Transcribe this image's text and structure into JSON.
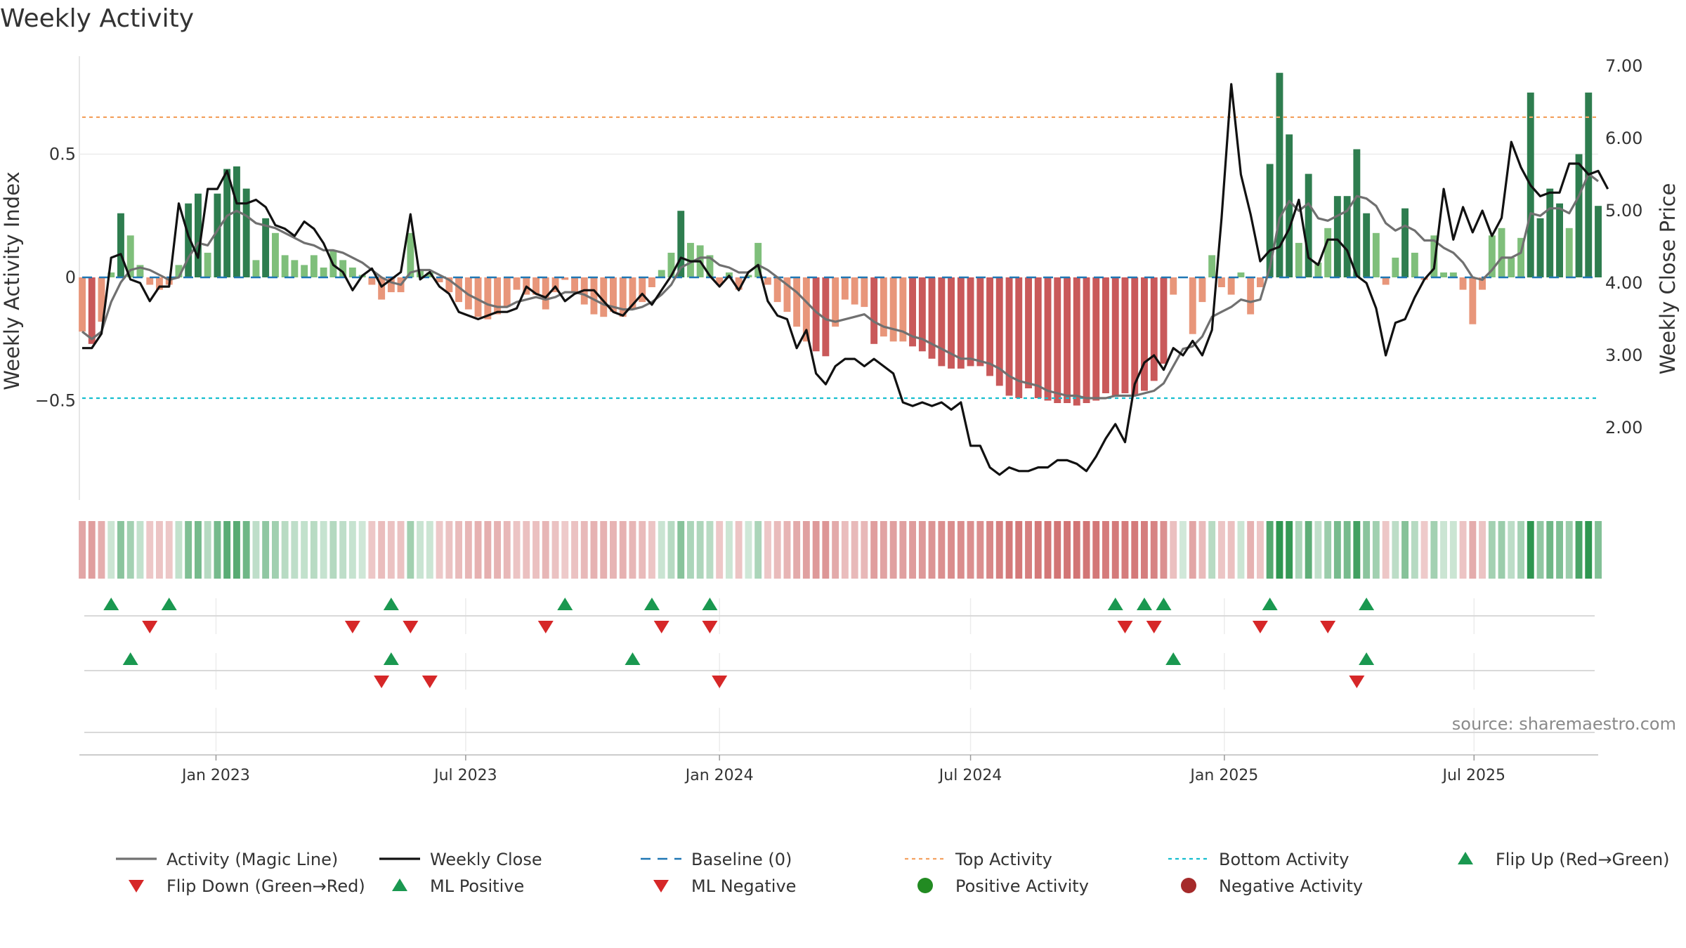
{
  "title": "Weekly Activity",
  "source": "source: sharemaestro.com",
  "colors": {
    "pos_dark": "#2e7d4f",
    "pos_light": "#7fbf7b",
    "neg_dark": "#c9595a",
    "neg_light": "#e8967a",
    "magic": "#707070",
    "close": "#111111",
    "baseline": "#1f77b4",
    "top": "#f4a261",
    "bottom": "#17becf",
    "flip_up": "#1a9850",
    "flip_down": "#d62728",
    "positive_activity": "#228b22",
    "negative_activity": "#a52a2a"
  },
  "chart_data": {
    "type": "bar",
    "title": "Weekly Activity",
    "ylabel_left": "Weekly Activity Index",
    "ylabel_right": "Weekly Close Price",
    "ylim_left": [
      -0.9,
      0.9
    ],
    "ylim_right": [
      1.0,
      7.0
    ],
    "yticks_left": [
      {
        "value": 0.5,
        "label": "0.5"
      },
      {
        "value": 0,
        "label": "0"
      },
      {
        "value": -0.5,
        "label": "−0.5"
      }
    ],
    "yticks_right": [
      {
        "value": 7.0,
        "label": "7.00"
      },
      {
        "value": 6.0,
        "label": "6.00"
      },
      {
        "value": 5.0,
        "label": "5.00"
      },
      {
        "value": 4.0,
        "label": "4.00"
      },
      {
        "value": 3.0,
        "label": "3.00"
      },
      {
        "value": 2.0,
        "label": "2.00"
      }
    ],
    "x_start": "2022-09-26",
    "weeks": 158,
    "xticks": [
      {
        "date": "2023-01-01",
        "label": "Jan 2023"
      },
      {
        "date": "2023-07-01",
        "label": "Jul 2023"
      },
      {
        "date": "2024-01-01",
        "label": "Jan 2024"
      },
      {
        "date": "2024-07-01",
        "label": "Jul 2024"
      },
      {
        "date": "2025-01-01",
        "label": "Jan 2025"
      },
      {
        "date": "2025-07-01",
        "label": "Jul 2025"
      }
    ],
    "activity": [
      -0.22,
      -0.27,
      -0.18,
      0.02,
      0.26,
      0.17,
      0.05,
      -0.03,
      -0.05,
      -0.03,
      0.05,
      0.3,
      0.34,
      0.1,
      0.34,
      0.44,
      0.45,
      0.36,
      0.07,
      0.24,
      0.18,
      0.09,
      0.07,
      0.05,
      0.09,
      0.04,
      0.11,
      0.07,
      0.04,
      0.01,
      -0.03,
      -0.09,
      -0.06,
      -0.06,
      0.18,
      0.03,
      0.02,
      -0.02,
      -0.06,
      -0.1,
      -0.13,
      -0.16,
      -0.17,
      -0.15,
      -0.12,
      -0.05,
      -0.07,
      -0.07,
      -0.13,
      -0.06,
      -0.01,
      -0.06,
      -0.11,
      -0.15,
      -0.16,
      -0.14,
      -0.16,
      -0.13,
      -0.1,
      -0.04,
      0.03,
      0.1,
      0.27,
      0.14,
      0.13,
      0.09,
      -0.03,
      0.02,
      -0.05,
      0.01,
      0.14,
      -0.03,
      -0.1,
      -0.14,
      -0.2,
      -0.26,
      -0.3,
      -0.32,
      -0.2,
      -0.09,
      -0.11,
      -0.12,
      -0.27,
      -0.24,
      -0.26,
      -0.26,
      -0.28,
      -0.3,
      -0.33,
      -0.36,
      -0.37,
      -0.37,
      -0.36,
      -0.36,
      -0.4,
      -0.44,
      -0.48,
      -0.49,
      -0.45,
      -0.49,
      -0.5,
      -0.51,
      -0.51,
      -0.52,
      -0.51,
      -0.5,
      -0.47,
      -0.48,
      -0.47,
      -0.48,
      -0.46,
      -0.42,
      -0.35,
      -0.07,
      0.0,
      -0.23,
      -0.1,
      0.09,
      -0.04,
      -0.07,
      0.02,
      -0.15,
      -0.04,
      0.46,
      0.83,
      0.58,
      0.14,
      0.42,
      0.06,
      0.2,
      0.33,
      0.33,
      0.52,
      0.26,
      0.18,
      -0.03,
      0.08,
      0.28,
      0.1,
      -0.01,
      0.17,
      0.02,
      0.02,
      -0.05,
      -0.19,
      -0.05,
      0.17,
      0.2,
      0.08,
      0.16,
      0.75,
      0.24,
      0.36,
      0.3,
      0.2,
      0.5,
      0.75,
      0.29
    ],
    "magic_line": [
      -0.22,
      -0.25,
      -0.22,
      -0.1,
      -0.02,
      0.03,
      0.04,
      0.03,
      0.01,
      -0.01,
      -0.0,
      0.08,
      0.14,
      0.13,
      0.19,
      0.25,
      0.27,
      0.25,
      0.22,
      0.21,
      0.2,
      0.18,
      0.16,
      0.14,
      0.13,
      0.11,
      0.11,
      0.1,
      0.08,
      0.06,
      0.03,
      -0.0,
      -0.02,
      -0.03,
      0.02,
      0.03,
      0.03,
      0.01,
      -0.01,
      -0.04,
      -0.07,
      -0.09,
      -0.11,
      -0.12,
      -0.12,
      -0.1,
      -0.09,
      -0.08,
      -0.09,
      -0.08,
      -0.06,
      -0.06,
      -0.07,
      -0.09,
      -0.11,
      -0.12,
      -0.13,
      -0.13,
      -0.12,
      -0.1,
      -0.07,
      -0.03,
      0.04,
      0.06,
      0.08,
      0.08,
      0.05,
      0.04,
      0.02,
      0.02,
      0.05,
      0.03,
      0.0,
      -0.03,
      -0.06,
      -0.1,
      -0.14,
      -0.17,
      -0.18,
      -0.17,
      -0.16,
      -0.15,
      -0.18,
      -0.2,
      -0.21,
      -0.22,
      -0.24,
      -0.25,
      -0.27,
      -0.29,
      -0.31,
      -0.33,
      -0.33,
      -0.34,
      -0.35,
      -0.37,
      -0.4,
      -0.42,
      -0.43,
      -0.44,
      -0.46,
      -0.47,
      -0.48,
      -0.48,
      -0.49,
      -0.49,
      -0.49,
      -0.48,
      -0.48,
      -0.48,
      -0.47,
      -0.46,
      -0.43,
      -0.36,
      -0.29,
      -0.28,
      -0.24,
      -0.16,
      -0.14,
      -0.12,
      -0.09,
      -0.1,
      -0.09,
      0.04,
      0.24,
      0.31,
      0.27,
      0.3,
      0.24,
      0.23,
      0.25,
      0.27,
      0.33,
      0.32,
      0.29,
      0.22,
      0.19,
      0.21,
      0.19,
      0.15,
      0.15,
      0.12,
      0.1,
      0.06,
      -0.0,
      -0.01,
      0.03,
      0.08,
      0.08,
      0.1,
      0.26,
      0.25,
      0.28,
      0.28,
      0.26,
      0.33,
      0.42,
      0.39
    ],
    "weekly_close": [
      3.1,
      3.1,
      3.3,
      4.35,
      4.4,
      4.05,
      4.0,
      3.75,
      3.95,
      3.95,
      5.1,
      4.65,
      4.35,
      5.3,
      5.3,
      5.55,
      5.1,
      5.1,
      5.15,
      5.05,
      4.8,
      4.75,
      4.65,
      4.85,
      4.75,
      4.55,
      4.25,
      4.15,
      3.9,
      4.1,
      4.2,
      3.95,
      4.05,
      4.15,
      4.95,
      4.05,
      4.15,
      3.95,
      3.85,
      3.6,
      3.55,
      3.5,
      3.55,
      3.6,
      3.6,
      3.65,
      3.95,
      3.85,
      3.8,
      3.95,
      3.75,
      3.85,
      3.9,
      3.9,
      3.75,
      3.6,
      3.55,
      3.7,
      3.85,
      3.7,
      3.9,
      4.1,
      4.35,
      4.3,
      4.3,
      4.1,
      3.95,
      4.1,
      3.9,
      4.15,
      4.25,
      3.75,
      3.55,
      3.5,
      3.1,
      3.35,
      2.75,
      2.6,
      2.85,
      2.95,
      2.95,
      2.85,
      2.95,
      2.85,
      2.75,
      2.35,
      2.3,
      2.35,
      2.3,
      2.35,
      2.25,
      2.35,
      1.75,
      1.75,
      1.45,
      1.35,
      1.45,
      1.4,
      1.4,
      1.45,
      1.45,
      1.55,
      1.55,
      1.5,
      1.4,
      1.6,
      1.85,
      2.05,
      1.8,
      2.6,
      2.9,
      3.0,
      2.8,
      3.1,
      3.0,
      3.2,
      3.0,
      3.35,
      4.9,
      6.75,
      5.5,
      4.95,
      4.3,
      4.45,
      4.5,
      4.75,
      5.15,
      4.35,
      4.25,
      4.6,
      4.6,
      4.45,
      4.1,
      4.0,
      3.65,
      3.0,
      3.45,
      3.5,
      3.8,
      4.05,
      4.2,
      5.3,
      4.6,
      5.05,
      4.7,
      5.0,
      4.65,
      4.9,
      5.95,
      5.6,
      5.35,
      5.2,
      5.25,
      5.25,
      5.65,
      5.65,
      5.5,
      5.55,
      5.3
    ],
    "baseline": 0,
    "top_activity": 0.65,
    "bottom_activity": -0.49,
    "flip_up_weeks": [
      3,
      9,
      32,
      50,
      59,
      65,
      107,
      110,
      112,
      123,
      133
    ],
    "flip_down_weeks": [
      7,
      28,
      34,
      48,
      60,
      65,
      108,
      111,
      122,
      129
    ],
    "ml_positive_weeks": [
      5,
      32,
      57,
      113,
      133
    ],
    "ml_negative_weeks": [
      31,
      36,
      66,
      132
    ],
    "series": [
      {
        "name": "Activity (Magic Line)"
      },
      {
        "name": "Weekly Close"
      },
      {
        "name": "Baseline (0)"
      },
      {
        "name": "Top Activity"
      },
      {
        "name": "Bottom Activity"
      },
      {
        "name": "Flip Up (Red→Green)"
      },
      {
        "name": "Flip Down (Green→Red)"
      },
      {
        "name": "ML Positive"
      },
      {
        "name": "ML Negative"
      },
      {
        "name": "Positive Activity"
      },
      {
        "name": "Negative Activity"
      }
    ]
  },
  "legend": {
    "position": "bottom",
    "items": [
      {
        "label": "Activity (Magic Line)",
        "kind": "solid-line",
        "color": "#707070"
      },
      {
        "label": "Weekly Close",
        "kind": "solid-line",
        "color": "#111111"
      },
      {
        "label": "Baseline (0)",
        "kind": "dash-line",
        "color": "#1f77b4"
      },
      {
        "label": "Top Activity",
        "kind": "dot-line",
        "color": "#f4a261"
      },
      {
        "label": "Bottom Activity",
        "kind": "dot-line",
        "color": "#17becf"
      },
      {
        "label": "Flip Up (Red→Green)",
        "kind": "triangle-up",
        "color": "#1a9850"
      },
      {
        "label": "Flip Down (Green→Red)",
        "kind": "triangle-down",
        "color": "#d62728"
      },
      {
        "label": "ML Positive",
        "kind": "triangle-up",
        "color": "#1a9850"
      },
      {
        "label": "ML Negative",
        "kind": "triangle-down",
        "color": "#d62728"
      },
      {
        "label": "Positive Activity",
        "kind": "circle",
        "color": "#228b22"
      },
      {
        "label": "Negative Activity",
        "kind": "circle",
        "color": "#a52a2a"
      }
    ]
  }
}
